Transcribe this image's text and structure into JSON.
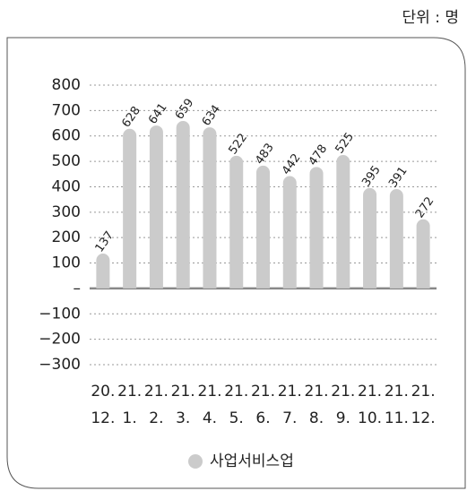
{
  "chart_data": {
    "type": "bar",
    "unit": "단위 : 명",
    "categories": [
      "20.\n12.",
      "21.\n1.",
      "21.\n2.",
      "21.\n3.",
      "21.\n4.",
      "21.\n5.",
      "21.\n6.",
      "21.\n7.",
      "21.\n8.",
      "21.\n9.",
      "21.\n10.",
      "21.\n11.",
      "21.\n12."
    ],
    "series": [
      {
        "name": "사업서비스업",
        "color": "#cbcbcb",
        "values": [
          137,
          628,
          641,
          659,
          634,
          522,
          483,
          442,
          478,
          525,
          395,
          391,
          272
        ]
      }
    ],
    "ylim": [
      -300,
      800
    ],
    "yticks": [
      {
        "value": -300,
        "label": "−300"
      },
      {
        "value": -200,
        "label": "−200"
      },
      {
        "value": -100,
        "label": "−100"
      },
      {
        "value": 0,
        "label": "–"
      },
      100,
      200,
      300,
      400,
      500,
      600,
      700,
      800
    ],
    "grid": true
  }
}
